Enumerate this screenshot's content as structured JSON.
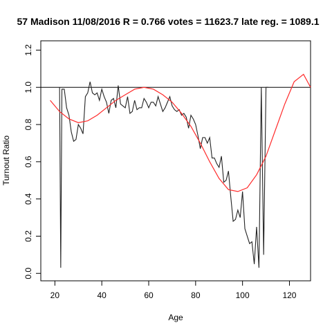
{
  "chart_data": {
    "type": "line",
    "title": "57 Madison 11/08/2016 R = 0.766 votes = 11623.7 late reg. = 1089.1",
    "xlabel": "Age",
    "ylabel": "Turnout Ratio",
    "xlim": [
      14,
      129
    ],
    "ylim": [
      -0.04,
      1.25
    ],
    "x_ticks": [
      20,
      40,
      60,
      80,
      100,
      120
    ],
    "y_ticks": [
      0.0,
      0.2,
      0.4,
      0.6,
      0.8,
      1.0,
      1.2
    ],
    "x_tick_labels": [
      "20",
      "40",
      "60",
      "80",
      "100",
      "120"
    ],
    "y_tick_labels": [
      "0.0",
      "0.2",
      "0.4",
      "0.6",
      "0.8",
      "1.0",
      "1.2"
    ],
    "reference_line": {
      "y": 1.0,
      "color": "#000000"
    },
    "grid": false,
    "legend": "none",
    "series": [
      {
        "style": "observed",
        "color": "#222222",
        "x": [
          22,
          22.5,
          23,
          24,
          25,
          26,
          27,
          28,
          29,
          30,
          31,
          32,
          33,
          34,
          35,
          36,
          37,
          38,
          39,
          40,
          41,
          42,
          43,
          44,
          45,
          46,
          47,
          48,
          49,
          50,
          51,
          52,
          53,
          54,
          55,
          56,
          57,
          58,
          59,
          60,
          61,
          62,
          63,
          64,
          65,
          66,
          67,
          68,
          69,
          70,
          71,
          72,
          73,
          74,
          75,
          76,
          77,
          78,
          79,
          80,
          81,
          82,
          83,
          84,
          85,
          86,
          87,
          88,
          89,
          90,
          91,
          92,
          93,
          94,
          95,
          96,
          97,
          98,
          99,
          100,
          101,
          102,
          103,
          104,
          105,
          106,
          107,
          108,
          109,
          110,
          111
        ],
        "values": [
          1.0,
          0.03,
          0.99,
          0.99,
          0.89,
          0.85,
          0.76,
          0.71,
          0.72,
          0.8,
          0.78,
          0.75,
          0.95,
          0.97,
          1.03,
          0.97,
          0.96,
          0.97,
          0.93,
          0.99,
          0.95,
          0.92,
          0.86,
          0.93,
          0.94,
          0.89,
          1.01,
          0.91,
          0.9,
          0.89,
          0.95,
          0.86,
          0.87,
          0.93,
          0.88,
          0.89,
          0.89,
          0.94,
          0.92,
          0.89,
          0.92,
          0.92,
          0.9,
          0.95,
          0.91,
          0.87,
          0.89,
          0.92,
          0.95,
          0.9,
          0.88,
          0.87,
          0.88,
          0.85,
          0.86,
          0.84,
          0.78,
          0.85,
          0.83,
          0.8,
          0.74,
          0.67,
          0.73,
          0.73,
          0.7,
          0.73,
          0.62,
          0.62,
          0.59,
          0.57,
          0.63,
          0.49,
          0.5,
          0.55,
          0.41,
          0.28,
          0.29,
          0.34,
          0.3,
          0.44,
          0.24,
          0.2,
          0.16,
          0.17,
          0.05,
          0.25,
          0.03,
          1.0,
          0.1,
          1.0,
          1.0
        ]
      },
      {
        "style": "fit",
        "color": "#ff2a2a",
        "x": [
          18,
          22,
          26,
          30,
          34,
          38,
          42,
          46,
          50,
          54,
          58,
          62,
          66,
          70,
          74,
          78,
          82,
          86,
          90,
          94,
          98,
          102,
          106,
          110,
          114,
          118,
          122,
          126,
          129
        ],
        "values": [
          0.93,
          0.87,
          0.83,
          0.81,
          0.82,
          0.85,
          0.89,
          0.93,
          0.96,
          0.99,
          1.0,
          0.99,
          0.96,
          0.92,
          0.86,
          0.79,
          0.7,
          0.6,
          0.51,
          0.45,
          0.44,
          0.46,
          0.53,
          0.63,
          0.77,
          0.91,
          1.03,
          1.07,
          1.0
        ]
      }
    ]
  }
}
